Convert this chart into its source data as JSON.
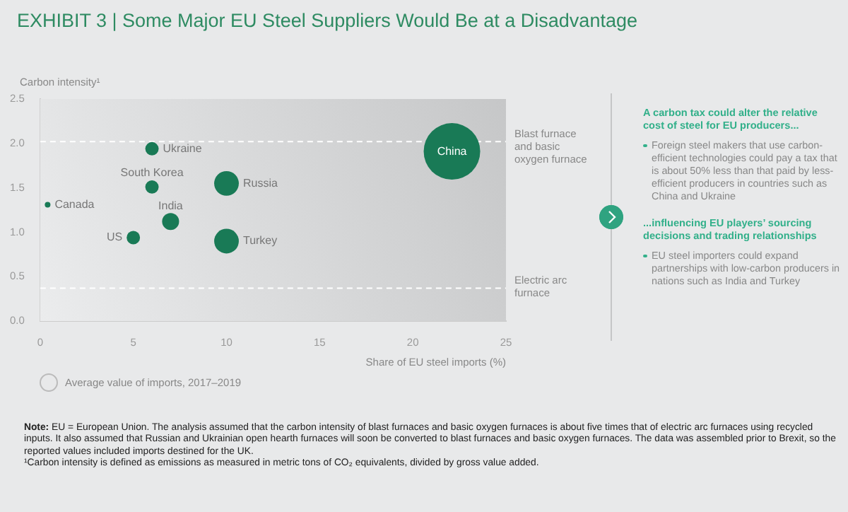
{
  "chart_data": {
    "type": "bubble",
    "title": "EXHIBIT 3 | Some Major EU Steel Suppliers Would Be at a Disadvantage",
    "xlabel": "Share of EU steel imports (%)",
    "ylabel": "Carbon intensity¹",
    "series": [
      {
        "name": "Ukraine",
        "color": "#197a56",
        "x": [
          6.0
        ],
        "values": [
          1.94
        ],
        "sizes": [
          0.056
        ]
      },
      {
        "name": "South Korea",
        "color": "#197a56",
        "x": [
          6.0
        ],
        "values": [
          1.51
        ],
        "sizes": [
          0.056
        ]
      },
      {
        "name": "Russia",
        "color": "#197a56",
        "x": [
          10.0
        ],
        "values": [
          1.55
        ],
        "sizes": [
          0.19
        ]
      },
      {
        "name": "Canada",
        "color": "#197a56",
        "x": [
          0.4
        ],
        "values": [
          1.31
        ],
        "sizes": [
          0.01
        ]
      },
      {
        "name": "India",
        "color": "#197a56",
        "x": [
          7.0
        ],
        "values": [
          1.12
        ],
        "sizes": [
          0.09
        ]
      },
      {
        "name": "US",
        "color": "#197a56",
        "x": [
          5.0
        ],
        "values": [
          0.94
        ],
        "sizes": [
          0.056
        ]
      },
      {
        "name": "Turkey",
        "color": "#197a56",
        "x": [
          10.0
        ],
        "values": [
          0.9
        ],
        "sizes": [
          0.19
        ]
      },
      {
        "name": "China",
        "color": "#197a56",
        "x": [
          22.1
        ],
        "values": [
          1.91
        ],
        "sizes": [
          1
        ]
      }
    ],
    "xlim": [
      0,
      25
    ],
    "xticks": [
      0,
      5,
      10,
      15,
      20,
      25
    ],
    "ylim": [
      0,
      2.5
    ],
    "yticks": [
      {
        "value": 0,
        "label": "0.0"
      },
      0.5,
      {
        "value": 1,
        "label": "1.0"
      },
      1.5,
      {
        "value": 2,
        "label": "2.0"
      },
      2.5
    ],
    "ref_lines": [
      {
        "axis": "y",
        "value": 2.02,
        "label": "Blast furnace and basic oxygen furnace",
        "color": "#ffffff",
        "line_style": "dashed"
      },
      {
        "axis": "y",
        "value": 0.37,
        "label": "Electric arc furnace",
        "color": "#ffffff",
        "line_style": "dashed"
      }
    ],
    "grid": false,
    "legend": false,
    "annotations": [
      "Average value of imports, 2017–2019",
      "A carbon tax could alter the relative cost of steel for EU producers...",
      "Foreign steel makers that use carbon-efficient technologies could pay a tax that is about 50% less than that paid by less-efficient producers in countries such as China and Ukraine",
      "...influencing EU players’ sourcing decisions and trading relationships",
      "EU steel importers could expand partnerships with low-carbon producers in nations such as India and Turkey",
      "Note: EU = European Union. The analysis assumed that the carbon intensity of blast furnaces and basic oxygen furnaces is about five times that of electric arc furnaces using recycled inputs. It also assumed that Russian and Ukrainian open hearth furnaces will soon be converted to blast furnaces and basic oxygen furnaces. The data was assembled prior to Brexit, so the reported values included imports destined for the UK.",
      "¹Carbon intensity is defined as emissions as measured in metric tons of CO₂ equivalents, divided by gross value added."
    ]
  }
}
